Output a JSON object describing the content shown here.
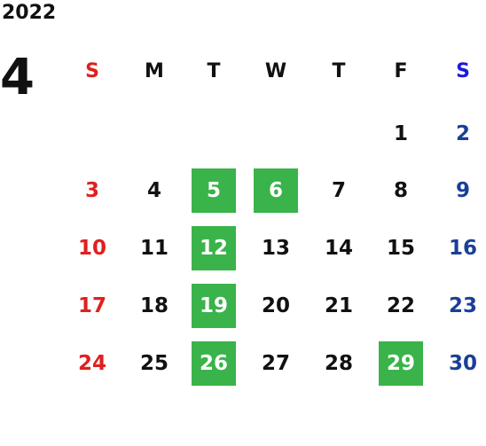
{
  "year": "2022",
  "month": "4",
  "colors": {
    "sunday": "#e02020",
    "saturday": "#1a3f96",
    "saturday_header": "#1a1ae0",
    "weekday": "#111111",
    "highlight_bg": "#3ab34a",
    "highlight_text": "#ffffff"
  },
  "weekdays": [
    "S",
    "M",
    "T",
    "W",
    "T",
    "F",
    "S"
  ],
  "weeks": [
    [
      "",
      "",
      "",
      "",
      "",
      "1",
      "2"
    ],
    [
      "3",
      "4",
      "5",
      "6",
      "7",
      "8",
      "9"
    ],
    [
      "10",
      "11",
      "12",
      "13",
      "14",
      "15",
      "16"
    ],
    [
      "17",
      "18",
      "19",
      "20",
      "21",
      "22",
      "23"
    ],
    [
      "24",
      "25",
      "26",
      "27",
      "28",
      "29",
      "30"
    ]
  ],
  "highlighted": [
    "5",
    "6",
    "12",
    "19",
    "26",
    "29"
  ]
}
